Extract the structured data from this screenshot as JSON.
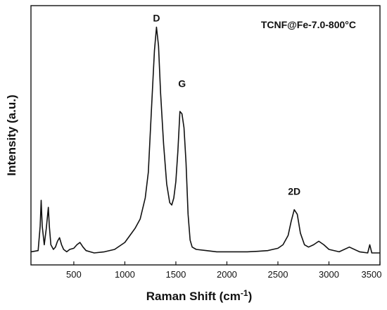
{
  "chart_data": {
    "type": "line",
    "title": "",
    "xlabel": "Raman Shift (cm",
    "xlabel_sup": "-1",
    "xlabel_close": ")",
    "ylabel": "Intensity (a.u.)",
    "xlim": [
      80,
      3500
    ],
    "ylim": [
      0,
      1.0
    ],
    "grid": false,
    "x_ticks": [
      500,
      1000,
      1500,
      2000,
      2500,
      3000,
      3500
    ],
    "x_tick_labels": [
      "500",
      "1000",
      "1500",
      "2000",
      "2500",
      "3000",
      "3500"
    ],
    "sample_label": "TCNF@Fe-7.0-800°C",
    "annotations": [
      {
        "text": "D",
        "x": 1310,
        "y": 0.98
      },
      {
        "text": "G",
        "x": 1560,
        "y": 0.7
      },
      {
        "text": "2D",
        "x": 2660,
        "y": 0.24
      }
    ],
    "series": [
      {
        "x": [
          80,
          150,
          170,
          180,
          190,
          210,
          230,
          250,
          260,
          275,
          300,
          320,
          340,
          360,
          380,
          400,
          430,
          460,
          500,
          530,
          560,
          590,
          620,
          660,
          700,
          800,
          900,
          1000,
          1050,
          1100,
          1150,
          1200,
          1230,
          1260,
          1290,
          1310,
          1330,
          1350,
          1380,
          1410,
          1440,
          1460,
          1480,
          1500,
          1520,
          1540,
          1560,
          1580,
          1600,
          1620,
          1640,
          1660,
          1700,
          1800,
          1900,
          2000,
          2100,
          2200,
          2300,
          2400,
          2450,
          2500,
          2550,
          2600,
          2630,
          2660,
          2690,
          2720,
          2760,
          2800,
          2850,
          2900,
          2950,
          3000,
          3100,
          3200,
          3300,
          3380,
          3400,
          3420,
          3500
        ],
        "y": [
          0.02,
          0.025,
          0.13,
          0.24,
          0.13,
          0.05,
          0.12,
          0.21,
          0.13,
          0.05,
          0.03,
          0.04,
          0.065,
          0.08,
          0.05,
          0.03,
          0.02,
          0.03,
          0.035,
          0.05,
          0.06,
          0.04,
          0.025,
          0.02,
          0.015,
          0.02,
          0.03,
          0.06,
          0.09,
          0.12,
          0.16,
          0.25,
          0.36,
          0.62,
          0.88,
          0.98,
          0.9,
          0.7,
          0.48,
          0.31,
          0.23,
          0.22,
          0.25,
          0.32,
          0.45,
          0.62,
          0.61,
          0.55,
          0.4,
          0.18,
          0.07,
          0.04,
          0.03,
          0.025,
          0.02,
          0.02,
          0.02,
          0.02,
          0.022,
          0.025,
          0.03,
          0.035,
          0.05,
          0.09,
          0.15,
          0.2,
          0.18,
          0.1,
          0.05,
          0.04,
          0.05,
          0.065,
          0.05,
          0.03,
          0.02,
          0.04,
          0.02,
          0.015,
          0.05,
          0.015,
          0.015
        ]
      }
    ]
  }
}
